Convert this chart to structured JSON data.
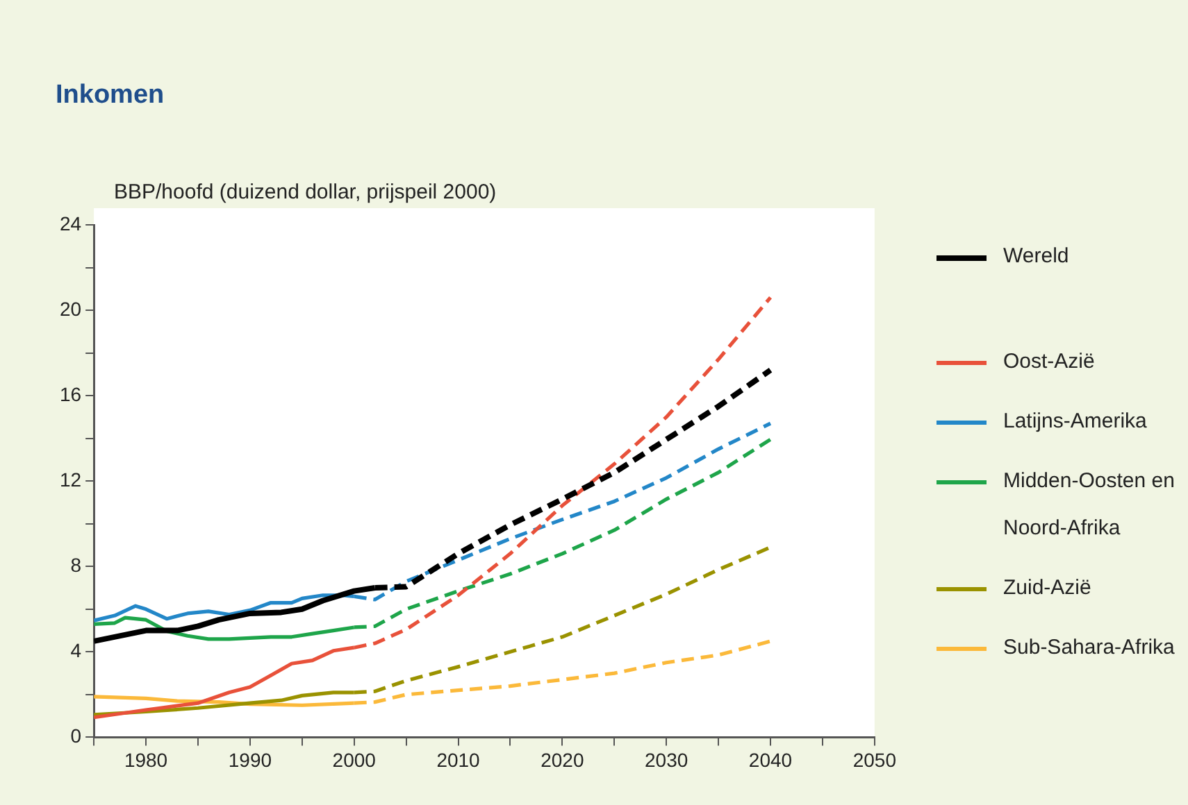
{
  "chart_data": {
    "type": "line",
    "title": "Inkomen",
    "ylabel": "BBP/hoofd (duizend dollar, prijspeil 2000)",
    "xlim": [
      1975,
      2050
    ],
    "ylim": [
      0,
      24
    ],
    "xticks": [
      {
        "value": 1975,
        "label": null
      },
      1980,
      {
        "value": 1985,
        "label": null
      },
      1990,
      {
        "value": 1995,
        "label": null
      },
      2000,
      {
        "value": 2005,
        "label": null
      },
      2010,
      {
        "value": 2015,
        "label": null
      },
      2020,
      {
        "value": 2025,
        "label": null
      },
      2030,
      {
        "value": 2035,
        "label": null
      },
      2040,
      {
        "value": 2045,
        "label": null
      },
      2050
    ],
    "yticks": [
      0,
      {
        "value": 2,
        "label": null
      },
      4,
      {
        "value": 6,
        "label": null
      },
      8,
      {
        "value": 10,
        "label": null
      },
      12,
      {
        "value": 14,
        "label": null
      },
      16,
      {
        "value": 18,
        "label": null
      },
      20,
      {
        "value": 22,
        "label": null
      },
      24
    ],
    "grid": false,
    "legend": "right",
    "marker": "none",
    "series": [
      {
        "name": "Wereld",
        "color": "#000000",
        "line_style": "solid",
        "x": [
          1975,
          1980,
          1983,
          1985,
          1987,
          1990,
          1993,
          1995,
          1997,
          2000,
          2002
        ],
        "values": [
          4.5,
          5.0,
          5.0,
          5.2,
          5.5,
          5.8,
          5.85,
          6.0,
          6.4,
          6.85,
          7.0
        ]
      },
      {
        "color": "#000000",
        "line_style": "dashed",
        "x": [
          2002,
          2005,
          2010,
          2015,
          2020,
          2025,
          2030,
          2035,
          2040
        ],
        "values": [
          7.0,
          7.05,
          8.6,
          9.95,
          11.15,
          12.4,
          13.95,
          15.5,
          17.2
        ]
      },
      {
        "name": "Oost-Azië",
        "color": "#e8513a",
        "line_style": "solid",
        "x": [
          1975,
          1980,
          1985,
          1988,
          1990,
          1992,
          1994,
          1996,
          1998,
          2000
        ],
        "values": [
          0.93,
          1.28,
          1.6,
          2.1,
          2.35,
          2.9,
          3.45,
          3.6,
          4.05,
          4.2
        ]
      },
      {
        "color": "#e8513a",
        "line_style": "dashed",
        "x": [
          2000,
          2002,
          2005,
          2010,
          2015,
          2020,
          2025,
          2030,
          2035,
          2040
        ],
        "values": [
          4.2,
          4.4,
          5.05,
          6.65,
          8.6,
          10.85,
          12.8,
          15.0,
          17.7,
          20.6
        ]
      },
      {
        "name": "Latijns-Amerika",
        "color": "#2387c8",
        "line_style": "solid",
        "x": [
          1975,
          1977,
          1979,
          1980,
          1982,
          1984,
          1986,
          1988,
          1990,
          1992,
          1994,
          1995,
          1997,
          1999,
          2000
        ],
        "values": [
          5.47,
          5.7,
          6.15,
          6.0,
          5.55,
          5.8,
          5.9,
          5.75,
          5.95,
          6.3,
          6.3,
          6.5,
          6.65,
          6.65,
          6.6
        ]
      },
      {
        "color": "#2387c8",
        "line_style": "dashed",
        "x": [
          2000,
          2002,
          2005,
          2010,
          2015,
          2020,
          2025,
          2030,
          2035,
          2040
        ],
        "values": [
          6.6,
          6.45,
          7.3,
          8.3,
          9.3,
          10.2,
          11.05,
          12.15,
          13.5,
          14.7
        ]
      },
      {
        "name": "Midden-Oosten en Noord-Afrika",
        "color": "#1ea54a",
        "line_style": "solid",
        "x": [
          1975,
          1977,
          1978,
          1980,
          1982,
          1984,
          1986,
          1988,
          1990,
          1992,
          1994,
          1996,
          1998,
          2000
        ],
        "values": [
          5.3,
          5.35,
          5.6,
          5.5,
          4.97,
          4.75,
          4.6,
          4.6,
          4.65,
          4.7,
          4.7,
          4.85,
          5.0,
          5.15
        ]
      },
      {
        "color": "#1ea54a",
        "line_style": "dashed",
        "x": [
          2000,
          2002,
          2005,
          2010,
          2015,
          2020,
          2025,
          2030,
          2035,
          2040
        ],
        "values": [
          5.15,
          5.2,
          6.0,
          6.85,
          7.65,
          8.6,
          9.7,
          11.15,
          12.4,
          13.95
        ]
      },
      {
        "name": "Zuid-Azië",
        "color": "#9a9200",
        "line_style": "solid",
        "x": [
          1975,
          1980,
          1985,
          1990,
          1993,
          1995,
          1998,
          2000
        ],
        "values": [
          1.06,
          1.2,
          1.37,
          1.6,
          1.73,
          1.95,
          2.1,
          2.1
        ]
      },
      {
        "color": "#9a9200",
        "line_style": "dashed",
        "x": [
          2000,
          2002,
          2005,
          2010,
          2015,
          2020,
          2025,
          2030,
          2035,
          2040
        ],
        "values": [
          2.1,
          2.15,
          2.65,
          3.3,
          4.0,
          4.7,
          5.7,
          6.7,
          7.85,
          8.9
        ]
      },
      {
        "name": "Sub-Sahara-Afrika",
        "color": "#fbb93a",
        "line_style": "solid",
        "x": [
          1975,
          1980,
          1983,
          1987,
          1990,
          1995,
          2000
        ],
        "values": [
          1.9,
          1.82,
          1.7,
          1.65,
          1.55,
          1.5,
          1.6
        ]
      },
      {
        "color": "#fbb93a",
        "line_style": "dashed",
        "x": [
          2000,
          2002,
          2005,
          2010,
          2015,
          2020,
          2025,
          2030,
          2035,
          2040
        ],
        "values": [
          1.6,
          1.65,
          2.0,
          2.2,
          2.4,
          2.7,
          3.0,
          3.5,
          3.85,
          4.5
        ]
      }
    ]
  }
}
